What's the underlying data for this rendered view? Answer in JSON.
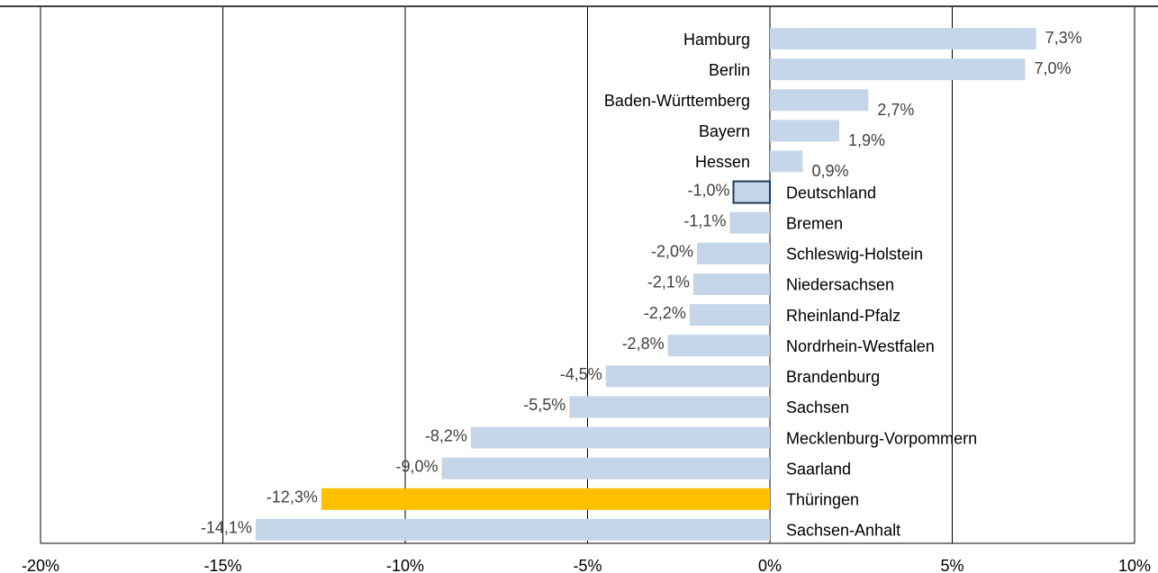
{
  "chart_data": {
    "type": "barh",
    "categories": [
      "Hamburg",
      "Berlin",
      "Baden-Württemberg",
      "Bayern",
      "Hessen",
      "Deutschland",
      "Bremen",
      "Schleswig-Holstein",
      "Niedersachsen",
      "Rheinland-Pfalz",
      "Nordrhein-Westfalen",
      "Brandenburg",
      "Sachsen",
      "Mecklenburg-Vorpommern",
      "Saarland",
      "Thüringen",
      "Sachsen-Anhalt"
    ],
    "values": [
      7.3,
      7.0,
      2.7,
      1.9,
      0.9,
      -1.0,
      -1.1,
      -2.0,
      -2.1,
      -2.2,
      -2.8,
      -4.5,
      -5.5,
      -8.2,
      -9.0,
      -12.3,
      -14.1
    ],
    "value_labels": [
      "7,3%",
      "7,0%",
      "2,7%",
      "1,9%",
      "0,9%",
      "-1,0%",
      "-1,1%",
      "-2,0%",
      "-2,1%",
      "-2,2%",
      "-2,8%",
      "-4,5%",
      "-5,5%",
      "-8,2%",
      "-9,0%",
      "-12,3%",
      "-14,1%"
    ],
    "colors": [
      "#c6d6e9",
      "#c6d6e9",
      "#c6d6e9",
      "#c6d6e9",
      "#c6d6e9",
      "#c6d6e9",
      "#c6d6e9",
      "#c6d6e9",
      "#c6d6e9",
      "#c6d6e9",
      "#c6d6e9",
      "#c6d6e9",
      "#c6d6e9",
      "#c6d6e9",
      "#c6d6e9",
      "#ffc000",
      "#c6d6e9"
    ],
    "edgecolors": [
      null,
      null,
      null,
      null,
      null,
      "#1f3b5a",
      null,
      null,
      null,
      null,
      null,
      null,
      null,
      null,
      null,
      null,
      null
    ],
    "xlim": [
      -20,
      10
    ],
    "xticks": [
      {
        "value": -20,
        "label": "-20%"
      },
      {
        "value": -15,
        "label": "-15%"
      },
      {
        "value": -10,
        "label": "-10%"
      },
      {
        "value": -5,
        "label": "-5%"
      },
      {
        "value": 0,
        "label": "0%"
      },
      {
        "value": 5,
        "label": "5%"
      },
      {
        "value": 10,
        "label": "10%"
      }
    ],
    "grid": true
  }
}
